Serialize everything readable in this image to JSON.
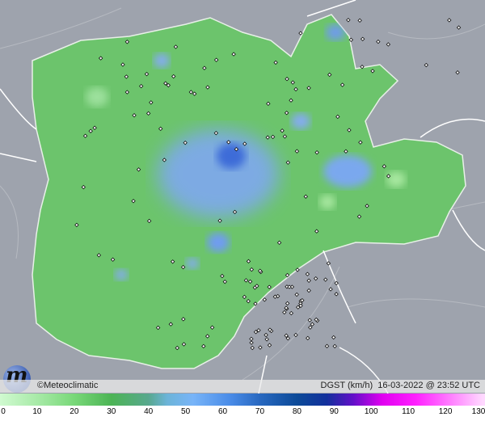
{
  "map": {
    "credit": "©Meteoclimatic",
    "variable": "DGST (km/h)",
    "timestamp": "16-03-2022 @ 23:52 UTC",
    "colors": {
      "background": "#9ea3ad",
      "region": "#6cc46c",
      "border": "#ffffff"
    }
  },
  "legend": {
    "ticks": [
      "0",
      "10",
      "20",
      "30",
      "40",
      "50",
      "60",
      "70",
      "80",
      "90",
      "100",
      "110",
      "120",
      "130"
    ],
    "tick_values": [
      0,
      10,
      20,
      30,
      40,
      50,
      60,
      70,
      80,
      90,
      100,
      110,
      120,
      130
    ],
    "stops": [
      {
        "v": 0,
        "c": "#d0fad0"
      },
      {
        "v": 10,
        "c": "#a8eaa8"
      },
      {
        "v": 20,
        "c": "#78d878"
      },
      {
        "v": 30,
        "c": "#4cb455"
      },
      {
        "v": 40,
        "c": "#58a88e"
      },
      {
        "v": 45,
        "c": "#6cb4d8"
      },
      {
        "v": 52,
        "c": "#78b4f8"
      },
      {
        "v": 62,
        "c": "#4a8ce8"
      },
      {
        "v": 70,
        "c": "#2868c0"
      },
      {
        "v": 80,
        "c": "#0c4a98"
      },
      {
        "v": 88,
        "c": "#12309c"
      },
      {
        "v": 95,
        "c": "#6010c8"
      },
      {
        "v": 103,
        "c": "#e000f0"
      },
      {
        "v": 112,
        "c": "#ff20ff"
      },
      {
        "v": 120,
        "c": "#ff70ff"
      },
      {
        "v": 130,
        "c": "#ffd8ff"
      }
    ]
  }
}
